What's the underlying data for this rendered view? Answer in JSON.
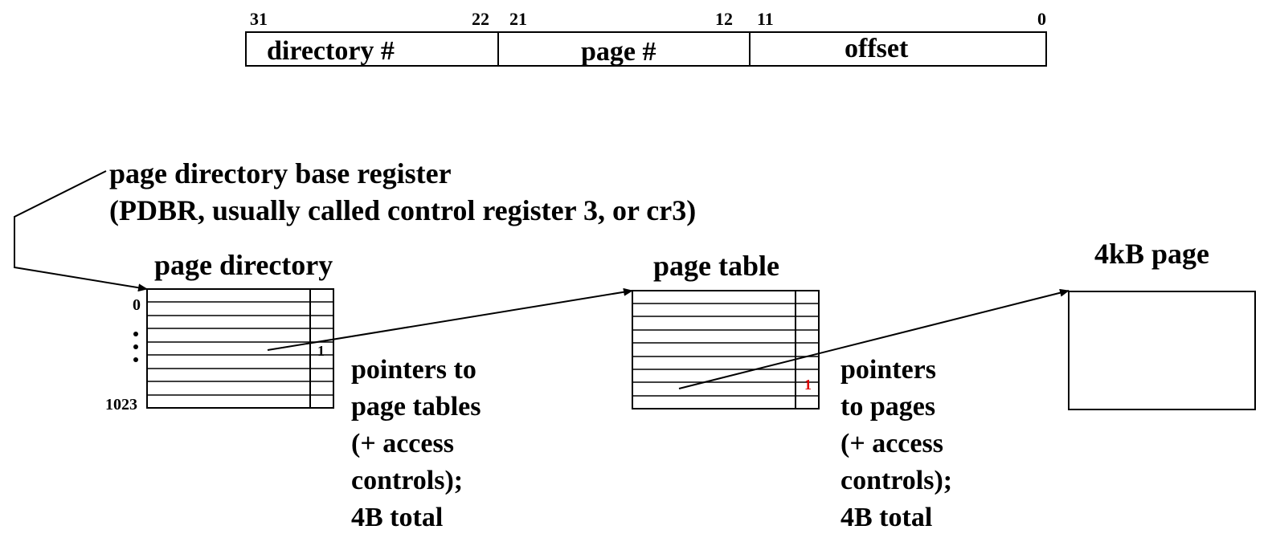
{
  "address_format": {
    "fields": [
      {
        "label": "directory #",
        "bit_high": "31",
        "bit_low": "22"
      },
      {
        "label": "page #",
        "bit_high": "21",
        "bit_low": "12"
      },
      {
        "label": "offset",
        "bit_high": "11",
        "bit_low": "0"
      }
    ]
  },
  "pdbr": {
    "line1": "page directory base register",
    "line2": "(PDBR, usually called control register 3, or cr3)"
  },
  "page_directory": {
    "title": "page directory",
    "index_first": "0",
    "index_last": "1023",
    "present_bit": "1",
    "description": [
      "pointers to",
      "page tables",
      "(+ access",
      "controls);",
      "4B total"
    ]
  },
  "page_table": {
    "title": "page table",
    "present_bit": "1",
    "present_bit_color": "#e00000",
    "description": [
      "pointers",
      "to pages",
      "(+ access",
      "controls);",
      "4B total"
    ]
  },
  "page": {
    "title": "4kB page"
  }
}
